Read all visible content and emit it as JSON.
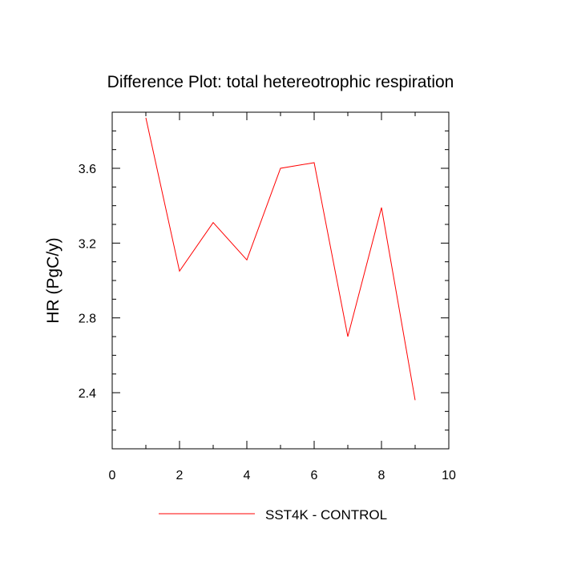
{
  "chart_data": {
    "type": "line",
    "title": "Difference Plot: total hetereotrophic respiration",
    "xlabel": "",
    "ylabel": "HR  (PgC/y)",
    "xlim": [
      0,
      10
    ],
    "ylim": [
      2.1,
      3.9
    ],
    "xticks": [
      0,
      2,
      4,
      6,
      8,
      10
    ],
    "yticks": [
      2.4,
      2.8,
      3.2,
      3.6
    ],
    "grid": false,
    "legend_position": "bottom-center",
    "series": [
      {
        "name": "SST4K - CONTROL",
        "color": "#ff0000",
        "x": [
          1,
          2,
          3,
          4,
          5,
          6,
          7,
          8,
          9
        ],
        "y": [
          3.87,
          3.05,
          3.31,
          3.11,
          3.6,
          3.63,
          2.7,
          3.39,
          2.36
        ]
      }
    ]
  }
}
